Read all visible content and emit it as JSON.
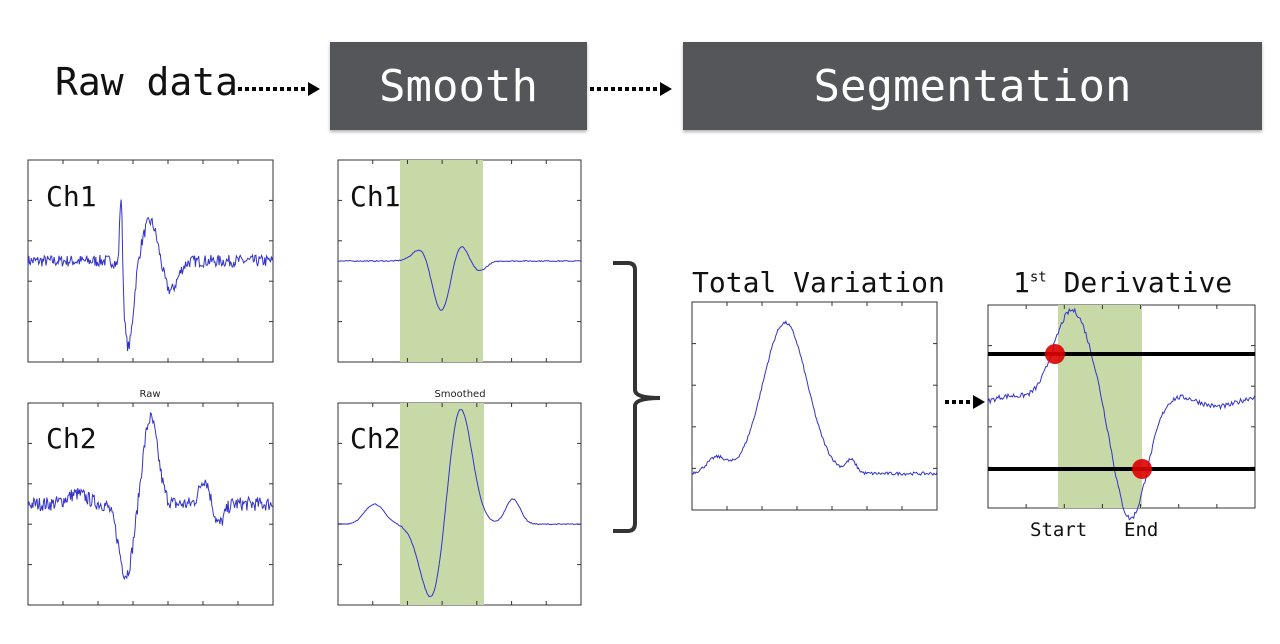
{
  "pipeline": {
    "input_label": "Raw data",
    "smooth_label": "Smooth",
    "segmentation_label": "Segmentation",
    "box_color": "#55565a"
  },
  "raw_panel": {
    "title": "Raw",
    "ch1": "Ch1",
    "ch2": "Ch2"
  },
  "smoothed_panel": {
    "title": "Smoothed",
    "ch1": "Ch1",
    "ch2": "Ch2"
  },
  "total_variation": {
    "title": "Total Variation"
  },
  "derivative": {
    "title_number": "1",
    "title_sup": "st",
    "title_rest": "Derivative",
    "start_label": "Start",
    "end_label": "End"
  },
  "colors": {
    "signal": "#3333cc",
    "highlight": "#c8d9a8",
    "marker": "#dd0000",
    "threshold": "#000000"
  }
}
